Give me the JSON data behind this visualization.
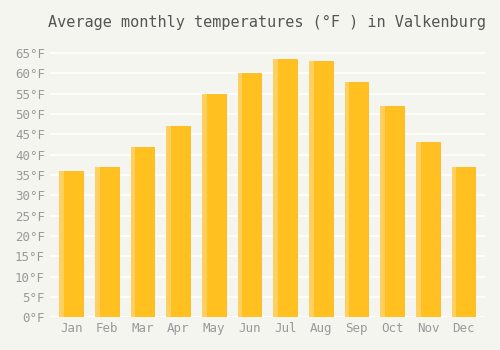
{
  "title": "Average monthly temperatures (°F ) in Valkenburg",
  "months": [
    "Jan",
    "Feb",
    "Mar",
    "Apr",
    "May",
    "Jun",
    "Jul",
    "Aug",
    "Sep",
    "Oct",
    "Nov",
    "Dec"
  ],
  "values": [
    36,
    37,
    42,
    47,
    55,
    60,
    63.5,
    63,
    58,
    52,
    43,
    37
  ],
  "bar_color_main": "#FFC020",
  "bar_color_edge": "#FFB000",
  "bar_gradient_light": "#FFD060",
  "background_color": "#F5F5F0",
  "grid_color": "#FFFFFF",
  "ylim": [
    0,
    68
  ],
  "yticks": [
    0,
    5,
    10,
    15,
    20,
    25,
    30,
    35,
    40,
    45,
    50,
    55,
    60,
    65
  ],
  "title_fontsize": 11,
  "tick_fontsize": 9,
  "tick_color": "#999999",
  "title_color": "#555555"
}
